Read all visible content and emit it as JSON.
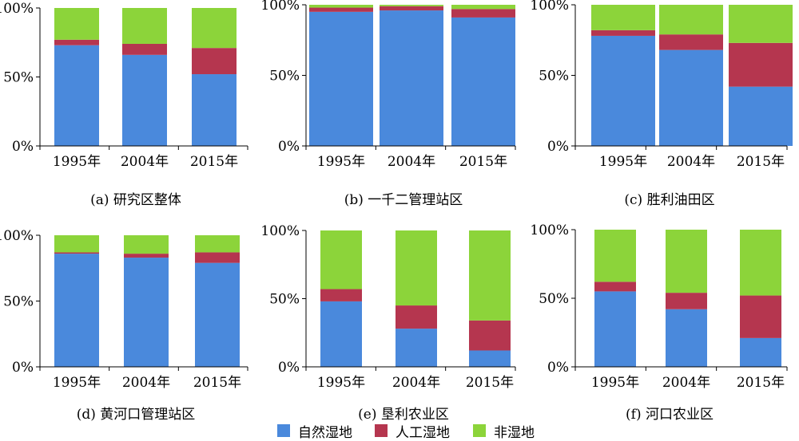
{
  "colors": {
    "natural": "#4A89DC",
    "artificial": "#B5364F",
    "non": "#8CD43A"
  },
  "legend": [
    {
      "key": "natural",
      "label": "自然湿地"
    },
    {
      "key": "artificial",
      "label": "人工湿地"
    },
    {
      "key": "non",
      "label": "非湿地"
    }
  ],
  "chart_data": [
    {
      "type": "bar",
      "stacked": true,
      "caption": "(a) 研究区整体",
      "categories": [
        "1995年",
        "2004年",
        "2015年"
      ],
      "yticks": [
        "0%",
        "50%",
        "100%"
      ],
      "ylim": [
        0,
        100
      ],
      "series": [
        {
          "name": "自然湿地",
          "values": [
            73,
            66,
            52
          ]
        },
        {
          "name": "人工湿地",
          "values": [
            4,
            8,
            19
          ]
        },
        {
          "name": "非湿地",
          "values": [
            23,
            26,
            29
          ]
        }
      ]
    },
    {
      "type": "bar",
      "stacked": true,
      "caption": "(b) 一千二管理站区",
      "categories": [
        "1995年",
        "2004年",
        "2015年"
      ],
      "yticks": [
        "0%",
        "50%",
        "100%"
      ],
      "ylim": [
        0,
        100
      ],
      "series": [
        {
          "name": "自然湿地",
          "values": [
            95,
            96,
            91
          ]
        },
        {
          "name": "人工湿地",
          "values": [
            3,
            3,
            6
          ]
        },
        {
          "name": "非湿地",
          "values": [
            2,
            1,
            3
          ]
        }
      ]
    },
    {
      "type": "bar",
      "stacked": true,
      "caption": "(c) 胜利油田区",
      "categories": [
        "1995年",
        "2004年",
        "2015年"
      ],
      "yticks": [
        "0%",
        "50%",
        "100%"
      ],
      "ylim": [
        0,
        100
      ],
      "series": [
        {
          "name": "自然湿地",
          "values": [
            78,
            68,
            42
          ]
        },
        {
          "name": "人工湿地",
          "values": [
            4,
            11,
            31
          ]
        },
        {
          "name": "非湿地",
          "values": [
            18,
            21,
            27
          ]
        }
      ]
    },
    {
      "type": "bar",
      "stacked": true,
      "caption": "(d) 黄河口管理站区",
      "categories": [
        "1995年",
        "2004年",
        "2015年"
      ],
      "yticks": [
        "0%",
        "50%",
        "100%"
      ],
      "ylim": [
        0,
        100
      ],
      "series": [
        {
          "name": "自然湿地",
          "values": [
            86,
            83,
            79
          ]
        },
        {
          "name": "人工湿地",
          "values": [
            1,
            3,
            8
          ]
        },
        {
          "name": "非湿地",
          "values": [
            13,
            14,
            13
          ]
        }
      ]
    },
    {
      "type": "bar",
      "stacked": true,
      "caption": "(e) 垦利农业区",
      "categories": [
        "1995年",
        "2004年",
        "2015年"
      ],
      "yticks": [
        "0%",
        "50%",
        "100%"
      ],
      "ylim": [
        0,
        100
      ],
      "series": [
        {
          "name": "自然湿地",
          "values": [
            48,
            28,
            12
          ]
        },
        {
          "name": "人工湿地",
          "values": [
            9,
            17,
            22
          ]
        },
        {
          "name": "非湿地",
          "values": [
            43,
            55,
            66
          ]
        }
      ]
    },
    {
      "type": "bar",
      "stacked": true,
      "caption": "(f) 河口农业区",
      "categories": [
        "1995年",
        "2004年",
        "2015年"
      ],
      "yticks": [
        "0%",
        "50%",
        "100%"
      ],
      "ylim": [
        0,
        100
      ],
      "series": [
        {
          "name": "自然湿地",
          "values": [
            55,
            42,
            21
          ]
        },
        {
          "name": "人工湿地",
          "values": [
            7,
            12,
            31
          ]
        },
        {
          "name": "非湿地",
          "values": [
            38,
            46,
            48
          ]
        }
      ]
    }
  ]
}
